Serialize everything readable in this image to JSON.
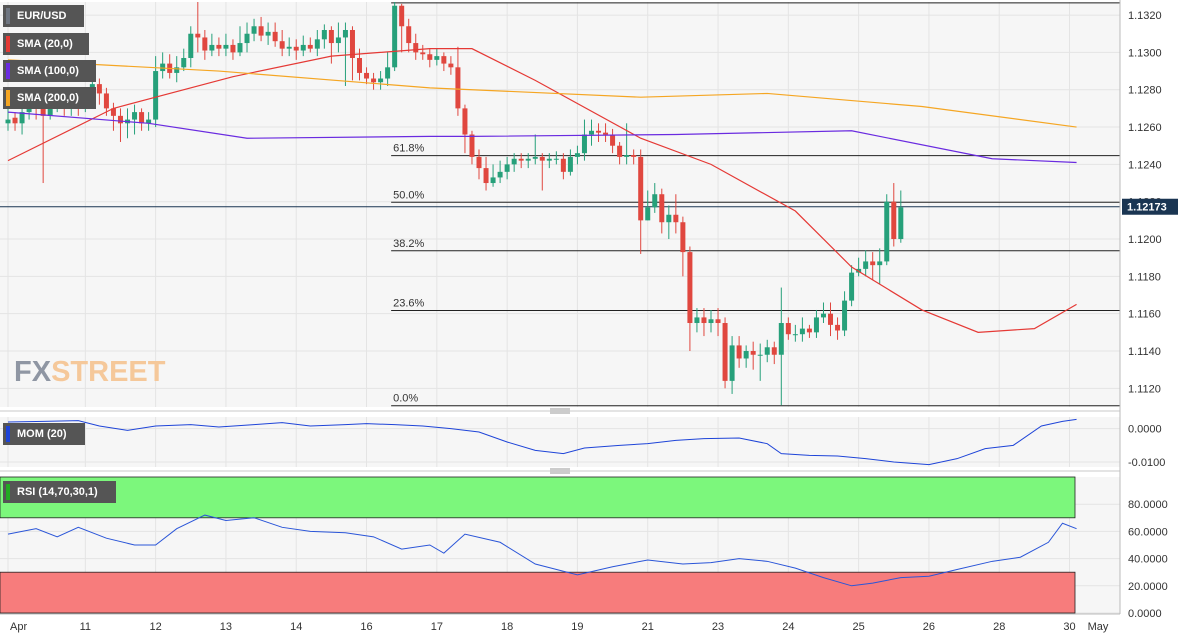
{
  "labels": {
    "symbol": "EUR/USD",
    "sma20": "SMA (20,0)",
    "sma100": "SMA (100,0)",
    "sma200": "SMA (200,0)",
    "mom": "MOM (20)",
    "rsi": "RSI (14,70,30,1)"
  },
  "logo": {
    "part1": "FX",
    "part2": "STREET"
  },
  "colors": {
    "up": "#26a07a",
    "down": "#e0473f",
    "sma20": "#e53935",
    "sma100": "#6a2be0",
    "sma200": "#f5a623",
    "mom": "#1e44d8",
    "rsi": "#2a55d8",
    "overbought": "#7cf77c",
    "oversold": "#f77c7c",
    "price_tag": "#1a3552"
  },
  "chart_data": [
    {
      "type": "candlestick",
      "title": "EUR/USD",
      "ylim": [
        1.111,
        1.1327
      ],
      "y_ticks": [
        "1.1320",
        "1.1300",
        "1.1280",
        "1.1260",
        "1.1240",
        "1.1220",
        "1.1200",
        "1.1180",
        "1.1160",
        "1.1140",
        "1.1120"
      ],
      "y_tick_values": [
        1.132,
        1.13,
        1.128,
        1.126,
        1.124,
        1.122,
        1.12,
        1.118,
        1.116,
        1.114,
        1.112
      ],
      "x_labels": [
        "Apr",
        "11",
        "12",
        "13",
        "14",
        "16",
        "17",
        "18",
        "19",
        "21",
        "23",
        "24",
        "25",
        "26",
        "28",
        "30",
        "May"
      ],
      "x_label_index": [
        0,
        11,
        21,
        31,
        41,
        51,
        61,
        71,
        81,
        91,
        101,
        111,
        121,
        131,
        141,
        151,
        161
      ],
      "last_price": "1.12173",
      "last_value": 1.12173,
      "fibonacci": [
        {
          "label": "61.8%",
          "value": 1.12447
        },
        {
          "label": "50.0%",
          "value": 1.12197
        },
        {
          "label": "38.2%",
          "value": 1.11937
        },
        {
          "label": "23.6%",
          "value": 1.11617
        },
        {
          "label": "0.0%",
          "value": 1.11107
        }
      ],
      "series": [
        {
          "name": "SMA (20,0)",
          "x": [
            0,
            15,
            32,
            46,
            60,
            66,
            75,
            90,
            100,
            112,
            120,
            130,
            138,
            146,
            152
          ],
          "values": [
            1.1242,
            1.127,
            1.1287,
            1.1298,
            1.1302,
            1.1302,
            1.1285,
            1.1254,
            1.124,
            1.1215,
            1.1185,
            1.1162,
            1.115,
            1.1152,
            1.1165
          ]
        },
        {
          "name": "SMA (100,0)",
          "x": [
            0,
            20,
            34,
            60,
            66,
            95,
            120,
            140,
            152
          ],
          "values": [
            1.1268,
            1.1262,
            1.1254,
            1.1255,
            1.1255,
            1.1256,
            1.1258,
            1.1243,
            1.1241
          ]
        },
        {
          "name": "SMA (200,0)",
          "x": [
            0,
            30,
            60,
            90,
            108,
            130,
            152
          ],
          "values": [
            1.1296,
            1.129,
            1.1281,
            1.1276,
            1.1278,
            1.1271,
            1.126
          ]
        }
      ],
      "candles": [
        [
          1.1262,
          1.1264,
          1.1272,
          1.1258
        ],
        [
          1.1265,
          1.1262,
          1.1268,
          1.1258
        ],
        [
          1.1262,
          1.1268,
          1.1272,
          1.1256
        ],
        [
          1.1268,
          1.1275,
          1.128,
          1.1264
        ],
        [
          1.1275,
          1.127,
          1.1278,
          1.1264
        ],
        [
          1.127,
          1.1266,
          1.1274,
          1.123
        ],
        [
          1.1266,
          1.1272,
          1.1276,
          1.1264
        ],
        [
          1.1272,
          1.1276,
          1.128,
          1.1268
        ],
        [
          1.1276,
          1.1271,
          1.128,
          1.1266
        ],
        [
          1.1271,
          1.1274,
          1.1278,
          1.1266
        ],
        [
          1.1274,
          1.1272,
          1.1279,
          1.1266
        ],
        [
          1.1272,
          1.1275,
          1.1279,
          1.1268
        ],
        [
          1.1275,
          1.1283,
          1.1288,
          1.1272
        ],
        [
          1.1283,
          1.1278,
          1.1286,
          1.1272
        ],
        [
          1.1278,
          1.127,
          1.1281,
          1.1266
        ],
        [
          1.127,
          1.1266,
          1.1273,
          1.1258
        ],
        [
          1.1266,
          1.1262,
          1.127,
          1.1252
        ],
        [
          1.1262,
          1.1264,
          1.127,
          1.1254
        ],
        [
          1.1264,
          1.1268,
          1.1272,
          1.1256
        ],
        [
          1.1268,
          1.1262,
          1.127,
          1.1258
        ],
        [
          1.1262,
          1.1264,
          1.1268,
          1.1258
        ],
        [
          1.1264,
          1.129,
          1.1298,
          1.126
        ],
        [
          1.129,
          1.1294,
          1.13,
          1.1286
        ],
        [
          1.1294,
          1.1289,
          1.1299,
          1.1286
        ],
        [
          1.1289,
          1.1292,
          1.1298,
          1.1284
        ],
        [
          1.1292,
          1.1297,
          1.1302,
          1.129
        ],
        [
          1.1297,
          1.131,
          1.1314,
          1.1292
        ],
        [
          1.131,
          1.1308,
          1.1327,
          1.13
        ],
        [
          1.1308,
          1.1301,
          1.1312,
          1.1296
        ],
        [
          1.1301,
          1.1304,
          1.131,
          1.1298
        ],
        [
          1.1304,
          1.1302,
          1.1308,
          1.1298
        ],
        [
          1.1302,
          1.1304,
          1.131,
          1.1298
        ],
        [
          1.1304,
          1.13,
          1.1307,
          1.1296
        ],
        [
          1.13,
          1.1305,
          1.1314,
          1.1298
        ],
        [
          1.1305,
          1.131,
          1.1316,
          1.13
        ],
        [
          1.131,
          1.1314,
          1.1318,
          1.1306
        ],
        [
          1.1314,
          1.1309,
          1.1319,
          1.1306
        ],
        [
          1.1309,
          1.1311,
          1.1316,
          1.1304
        ],
        [
          1.1311,
          1.1306,
          1.1316,
          1.1303
        ],
        [
          1.1306,
          1.1302,
          1.1312,
          1.1298
        ],
        [
          1.1302,
          1.1303,
          1.1308,
          1.1298
        ],
        [
          1.1303,
          1.1301,
          1.1307,
          1.1296
        ],
        [
          1.1301,
          1.1304,
          1.1309,
          1.1298
        ],
        [
          1.1304,
          1.1302,
          1.1308,
          1.13
        ],
        [
          1.1302,
          1.1307,
          1.1312,
          1.1298
        ],
        [
          1.1307,
          1.1312,
          1.1315,
          1.1302
        ],
        [
          1.1312,
          1.1305,
          1.1314,
          1.1294
        ],
        [
          1.1305,
          1.1308,
          1.1316,
          1.13
        ],
        [
          1.1308,
          1.1312,
          1.1316,
          1.1282
        ],
        [
          1.1312,
          1.1297,
          1.1314,
          1.1285
        ],
        [
          1.1297,
          1.1289,
          1.1302,
          1.1285
        ],
        [
          1.1289,
          1.1286,
          1.1292,
          1.1283
        ],
        [
          1.1286,
          1.1284,
          1.1289,
          1.128
        ],
        [
          1.1284,
          1.1286,
          1.129,
          1.128
        ],
        [
          1.1286,
          1.1292,
          1.13,
          1.1282
        ],
        [
          1.1292,
          1.1325,
          1.1327,
          1.129
        ],
        [
          1.1325,
          1.1314,
          1.1326,
          1.13
        ],
        [
          1.1314,
          1.1305,
          1.1318,
          1.13
        ],
        [
          1.1305,
          1.13,
          1.131,
          1.1296
        ],
        [
          1.13,
          1.1299,
          1.1304,
          1.1296
        ],
        [
          1.1299,
          1.1296,
          1.1302,
          1.1292
        ],
        [
          1.1296,
          1.1298,
          1.1302,
          1.1293
        ],
        [
          1.1298,
          1.1294,
          1.13,
          1.129
        ],
        [
          1.1294,
          1.1292,
          1.1298,
          1.1288
        ],
        [
          1.1292,
          1.127,
          1.1303,
          1.1266
        ],
        [
          1.127,
          1.1256,
          1.1272,
          1.1246
        ],
        [
          1.1256,
          1.1244,
          1.1258,
          1.124
        ],
        [
          1.1244,
          1.1238,
          1.1248,
          1.1232
        ],
        [
          1.1238,
          1.123,
          1.1244,
          1.1226
        ],
        [
          1.123,
          1.1233,
          1.124,
          1.1228
        ],
        [
          1.1233,
          1.1236,
          1.1242,
          1.123
        ],
        [
          1.1236,
          1.124,
          1.1244,
          1.1232
        ],
        [
          1.124,
          1.1243,
          1.1246,
          1.1236
        ],
        [
          1.1243,
          1.1242,
          1.1246,
          1.1238
        ],
        [
          1.1242,
          1.1243,
          1.1246,
          1.1238
        ],
        [
          1.1243,
          1.1244,
          1.1256,
          1.124
        ],
        [
          1.1244,
          1.1242,
          1.1246,
          1.1226
        ],
        [
          1.1242,
          1.1243,
          1.1246,
          1.1238
        ],
        [
          1.1243,
          1.1243,
          1.1247,
          1.124
        ],
        [
          1.1243,
          1.1236,
          1.1246,
          1.1232
        ],
        [
          1.1236,
          1.1244,
          1.1248,
          1.1234
        ],
        [
          1.1244,
          1.1246,
          1.125,
          1.124
        ],
        [
          1.1246,
          1.1256,
          1.1264,
          1.1242
        ],
        [
          1.1256,
          1.1258,
          1.1264,
          1.125
        ],
        [
          1.1258,
          1.1257,
          1.1262,
          1.1252
        ],
        [
          1.1257,
          1.1256,
          1.1262,
          1.1252
        ],
        [
          1.1256,
          1.125,
          1.1259,
          1.1246
        ],
        [
          1.125,
          1.1244,
          1.1252,
          1.124
        ],
        [
          1.1244,
          1.1245,
          1.1262,
          1.124
        ],
        [
          1.1245,
          1.1244,
          1.1248,
          1.124
        ],
        [
          1.1244,
          1.121,
          1.1248,
          1.1192
        ],
        [
          1.121,
          1.1217,
          1.1226,
          1.121
        ],
        [
          1.1217,
          1.1224,
          1.123,
          1.1214
        ],
        [
          1.1224,
          1.1209,
          1.1227,
          1.1203
        ],
        [
          1.1209,
          1.1213,
          1.1218,
          1.12
        ],
        [
          1.1213,
          1.1209,
          1.1224,
          1.1203
        ],
        [
          1.1209,
          1.1193,
          1.1212,
          1.118
        ],
        [
          1.1193,
          1.1155,
          1.1196,
          1.114
        ],
        [
          1.1155,
          1.1158,
          1.1163,
          1.115
        ],
        [
          1.1158,
          1.1155,
          1.1163,
          1.1148
        ],
        [
          1.1155,
          1.1157,
          1.1162,
          1.115
        ],
        [
          1.1157,
          1.1155,
          1.1163,
          1.1148
        ],
        [
          1.1155,
          1.1124,
          1.1158,
          1.112
        ],
        [
          1.1124,
          1.1143,
          1.1148,
          1.1117
        ],
        [
          1.1143,
          1.1136,
          1.1148,
          1.1131
        ],
        [
          1.1136,
          1.114,
          1.1143,
          1.1131
        ],
        [
          1.114,
          1.1138,
          1.1145,
          1.113
        ],
        [
          1.1138,
          1.1138,
          1.1144,
          1.1124
        ],
        [
          1.1138,
          1.1142,
          1.1146,
          1.1134
        ],
        [
          1.1142,
          1.1138,
          1.1145,
          1.1133
        ],
        [
          1.1138,
          1.1155,
          1.1174,
          1.1111
        ],
        [
          1.1155,
          1.1149,
          1.1158,
          1.1146
        ],
        [
          1.1149,
          1.1149,
          1.1154,
          1.1145
        ],
        [
          1.1149,
          1.1152,
          1.1158,
          1.1145
        ],
        [
          1.1152,
          1.115,
          1.1154,
          1.1147
        ],
        [
          1.115,
          1.1158,
          1.1162,
          1.1147
        ],
        [
          1.1158,
          1.116,
          1.1166,
          1.1155
        ],
        [
          1.116,
          1.1154,
          1.1166,
          1.1148
        ],
        [
          1.1154,
          1.1151,
          1.1158,
          1.1146
        ],
        [
          1.1151,
          1.1167,
          1.1172,
          1.1148
        ],
        [
          1.1167,
          1.1182,
          1.1186,
          1.1164
        ],
        [
          1.1182,
          1.1184,
          1.119,
          1.118
        ],
        [
          1.1184,
          1.1188,
          1.1194,
          1.118
        ],
        [
          1.1188,
          1.1186,
          1.1193,
          1.1178
        ],
        [
          1.1186,
          1.1188,
          1.1195,
          1.1176
        ],
        [
          1.1188,
          1.122,
          1.1224,
          1.1186
        ],
        [
          1.122,
          1.12,
          1.123,
          1.1196
        ],
        [
          1.12,
          1.1217,
          1.1226,
          1.1198
        ]
      ]
    },
    {
      "type": "line",
      "title": "MOM (20)",
      "ylim": [
        -0.0115,
        0.0035
      ],
      "y_ticks": [
        "0.0000",
        "-0.0100"
      ],
      "y_tick_values": [
        0.0,
        -0.01
      ],
      "x": [
        0,
        5,
        10,
        13,
        17,
        21,
        26,
        30,
        35,
        39,
        43,
        48,
        51,
        55,
        59,
        63,
        67,
        71,
        75,
        79,
        82,
        87,
        91,
        95,
        99,
        104,
        108,
        110,
        114,
        118,
        122,
        126,
        131,
        135,
        139,
        143,
        147,
        150,
        152
      ],
      "values": [
        0.002,
        0.0022,
        0.0024,
        0.0008,
        -0.0005,
        0.0008,
        0.0012,
        0.0005,
        0.0012,
        0.0018,
        0.0008,
        0.0012,
        0.0015,
        0.0012,
        0.0008,
        0.0,
        -0.001,
        -0.004,
        -0.0065,
        -0.0075,
        -0.0058,
        -0.005,
        -0.0045,
        -0.0035,
        -0.003,
        -0.0028,
        -0.0045,
        -0.0075,
        -0.008,
        -0.0082,
        -0.009,
        -0.01,
        -0.0108,
        -0.009,
        -0.006,
        -0.005,
        0.0008,
        0.0022,
        0.0028
      ]
    },
    {
      "type": "line",
      "title": "RSI (14,70,30,1)",
      "ylim": [
        0,
        100
      ],
      "y_ticks": [
        "80.0000",
        "60.0000",
        "40.0000",
        "20.0000",
        "0.0000"
      ],
      "y_tick_values": [
        80,
        60,
        40,
        20,
        0
      ],
      "overbought": 70,
      "oversold": 30,
      "x": [
        0,
        4,
        7,
        10,
        14,
        18,
        21,
        24,
        28,
        31,
        35,
        39,
        43,
        48,
        52,
        56,
        60,
        62,
        65,
        70,
        75,
        81,
        86,
        91,
        96,
        100,
        104,
        108,
        112,
        116,
        120,
        123,
        127,
        131,
        135,
        140,
        144,
        148,
        150,
        152
      ],
      "values": [
        58,
        62,
        56,
        63,
        55,
        50,
        50,
        62,
        72,
        68,
        70,
        63,
        60,
        59,
        56,
        47,
        50,
        44,
        58,
        52,
        36,
        28,
        34,
        39,
        36,
        37,
        40,
        38,
        33,
        26,
        20,
        22,
        26,
        27,
        32,
        38,
        41,
        52,
        66,
        62
      ]
    }
  ]
}
